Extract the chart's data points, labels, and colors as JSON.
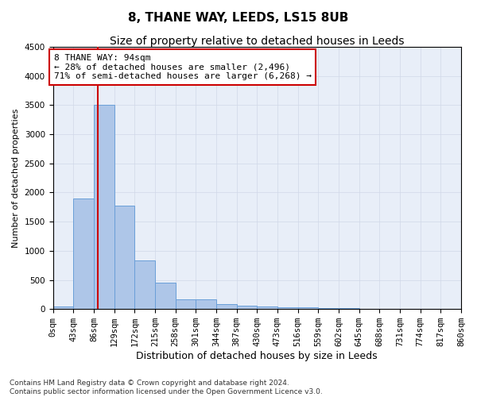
{
  "title": "8, THANE WAY, LEEDS, LS15 8UB",
  "subtitle": "Size of property relative to detached houses in Leeds",
  "xlabel": "Distribution of detached houses by size in Leeds",
  "ylabel": "Number of detached properties",
  "bin_edges": [
    0,
    43,
    86,
    129,
    172,
    215,
    258,
    301,
    344,
    387,
    430,
    473,
    516,
    559,
    602,
    645,
    688,
    731,
    774,
    817,
    860
  ],
  "bar_heights": [
    40,
    1900,
    3500,
    1775,
    840,
    450,
    170,
    160,
    90,
    60,
    50,
    35,
    30,
    15,
    10,
    5,
    5,
    3,
    2,
    1
  ],
  "bar_color": "#aec6e8",
  "bar_edge_color": "#6a9fd8",
  "property_size": 94,
  "vline_color": "#cc0000",
  "annotation_text": "8 THANE WAY: 94sqm\n← 28% of detached houses are smaller (2,496)\n71% of semi-detached houses are larger (6,268) →",
  "annotation_box_color": "#cc0000",
  "ylim": [
    0,
    4500
  ],
  "yticks": [
    0,
    500,
    1000,
    1500,
    2000,
    2500,
    3000,
    3500,
    4000,
    4500
  ],
  "grid_color": "#d0d8e8",
  "bg_color": "#e8eef8",
  "footnote": "Contains HM Land Registry data © Crown copyright and database right 2024.\nContains public sector information licensed under the Open Government Licence v3.0.",
  "title_fontsize": 11,
  "subtitle_fontsize": 10,
  "xlabel_fontsize": 9,
  "ylabel_fontsize": 8,
  "tick_fontsize": 7.5,
  "annotation_fontsize": 8,
  "footnote_fontsize": 6.5
}
